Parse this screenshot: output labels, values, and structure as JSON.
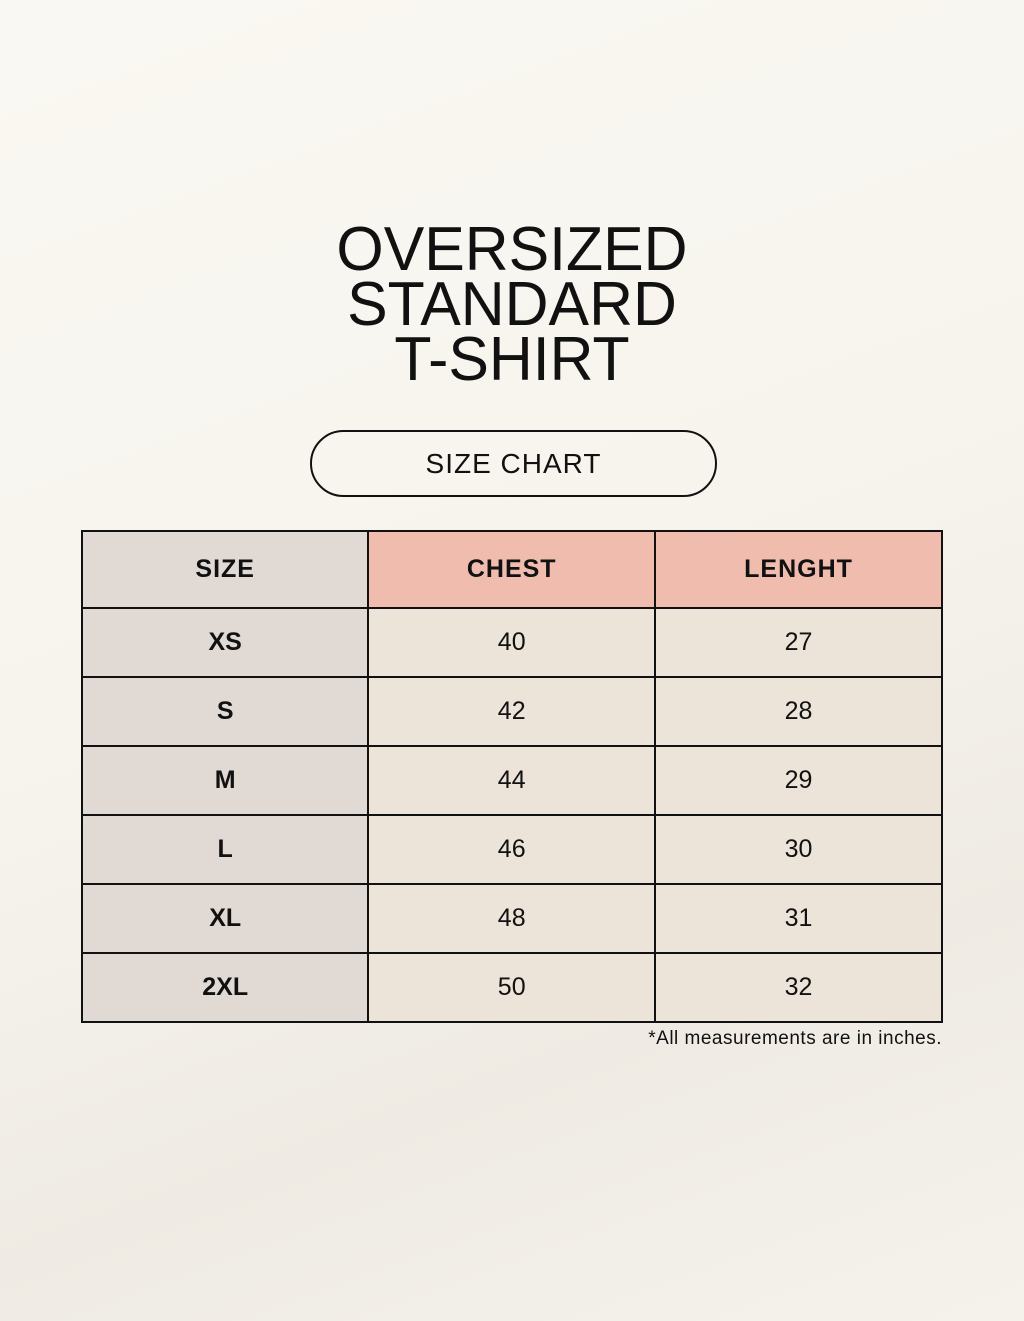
{
  "title_lines": [
    "OVERSIZED",
    "STANDARD",
    "T-SHIRT"
  ],
  "subtitle": "SIZE CHART",
  "table": {
    "headers": [
      "SIZE",
      "CHEST",
      "LENGHT"
    ],
    "rows": [
      [
        "XS",
        "40",
        "27"
      ],
      [
        "S",
        "42",
        "28"
      ],
      [
        "M",
        "44",
        "29"
      ],
      [
        "L",
        "46",
        "30"
      ],
      [
        "XL",
        "48",
        "31"
      ],
      [
        "2XL",
        "50",
        "32"
      ]
    ]
  },
  "note": "*All measurements are in inches.",
  "colors": {
    "size_column": "#e0d9d4",
    "header_accent": "#efbcae",
    "body_cells": "#ece3d9",
    "background": "#f8f6f0"
  }
}
